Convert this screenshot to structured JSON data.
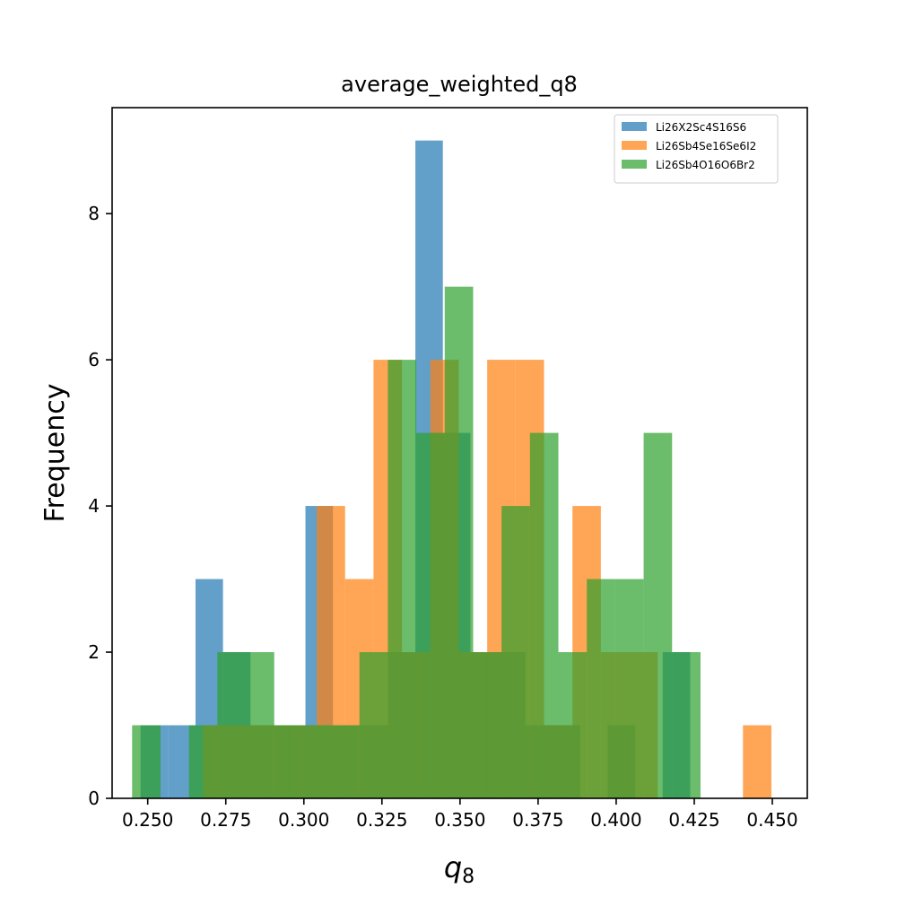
{
  "chart_data": {
    "type": "bar",
    "subtype": "overlapping-histogram",
    "title": "average_weighted_q8",
    "xlabel": "q",
    "xlabel_subscript": "8",
    "ylabel": "Frequency",
    "xlim": [
      0.2386,
      0.4612
    ],
    "ylim": [
      0,
      9.45
    ],
    "xticks": [
      0.25,
      0.275,
      0.3,
      0.325,
      0.35,
      0.375,
      0.4,
      0.425,
      0.45
    ],
    "xtick_labels": [
      "0.250",
      "0.275",
      "0.300",
      "0.325",
      "0.350",
      "0.375",
      "0.400",
      "0.425",
      "0.450"
    ],
    "yticks": [
      0,
      2,
      4,
      6,
      8
    ],
    "ytick_labels": [
      "0",
      "2",
      "4",
      "6",
      "8"
    ],
    "legend_position": "top-right",
    "grid": false,
    "series": [
      {
        "name": "Li26X2Sc4S16S6",
        "color": "#1f77b4",
        "opacity": 0.7,
        "bins": [
          {
            "x0": 0.2477,
            "x1": 0.2565,
            "count": 1
          },
          {
            "x0": 0.2565,
            "x1": 0.2653,
            "count": 1
          },
          {
            "x0": 0.2653,
            "x1": 0.2741,
            "count": 3
          },
          {
            "x0": 0.2741,
            "x1": 0.2829,
            "count": 2
          },
          {
            "x0": 0.2829,
            "x1": 0.2917,
            "count": 1
          },
          {
            "x0": 0.2917,
            "x1": 0.3005,
            "count": 1
          },
          {
            "x0": 0.3005,
            "x1": 0.3093,
            "count": 4
          },
          {
            "x0": 0.3093,
            "x1": 0.3181,
            "count": 1
          },
          {
            "x0": 0.3181,
            "x1": 0.3269,
            "count": 1
          },
          {
            "x0": 0.3269,
            "x1": 0.3357,
            "count": 2
          },
          {
            "x0": 0.3357,
            "x1": 0.3445,
            "count": 9
          },
          {
            "x0": 0.3445,
            "x1": 0.3533,
            "count": 5
          },
          {
            "x0": 0.3533,
            "x1": 0.3621,
            "count": 2
          },
          {
            "x0": 0.3621,
            "x1": 0.3709,
            "count": 2
          },
          {
            "x0": 0.3709,
            "x1": 0.3797,
            "count": 1
          },
          {
            "x0": 0.3797,
            "x1": 0.3885,
            "count": 1
          },
          {
            "x0": 0.3885,
            "x1": 0.3973,
            "count": 0
          },
          {
            "x0": 0.3973,
            "x1": 0.4061,
            "count": 1
          },
          {
            "x0": 0.4061,
            "x1": 0.4149,
            "count": 0
          },
          {
            "x0": 0.4149,
            "x1": 0.4237,
            "count": 2
          }
        ]
      },
      {
        "name": "Li26Sb4Se16Se6I2",
        "color": "#ff7f0e",
        "opacity": 0.7,
        "bins": [
          {
            "x0": 0.2677,
            "x1": 0.2768,
            "count": 1
          },
          {
            "x0": 0.2768,
            "x1": 0.2859,
            "count": 1
          },
          {
            "x0": 0.2859,
            "x1": 0.295,
            "count": 1
          },
          {
            "x0": 0.295,
            "x1": 0.3041,
            "count": 1
          },
          {
            "x0": 0.3041,
            "x1": 0.3132,
            "count": 4
          },
          {
            "x0": 0.3132,
            "x1": 0.3223,
            "count": 3
          },
          {
            "x0": 0.3223,
            "x1": 0.3314,
            "count": 6
          },
          {
            "x0": 0.3314,
            "x1": 0.3405,
            "count": 2
          },
          {
            "x0": 0.3405,
            "x1": 0.3496,
            "count": 6
          },
          {
            "x0": 0.3496,
            "x1": 0.3587,
            "count": 2
          },
          {
            "x0": 0.3587,
            "x1": 0.3678,
            "count": 6
          },
          {
            "x0": 0.3678,
            "x1": 0.3769,
            "count": 6
          },
          {
            "x0": 0.3769,
            "x1": 0.386,
            "count": 1
          },
          {
            "x0": 0.386,
            "x1": 0.3951,
            "count": 4
          },
          {
            "x0": 0.3951,
            "x1": 0.4042,
            "count": 2
          },
          {
            "x0": 0.4042,
            "x1": 0.4133,
            "count": 2
          },
          {
            "x0": 0.4133,
            "x1": 0.4224,
            "count": 0
          },
          {
            "x0": 0.4224,
            "x1": 0.4315,
            "count": 0
          },
          {
            "x0": 0.4315,
            "x1": 0.4406,
            "count": 0
          },
          {
            "x0": 0.4406,
            "x1": 0.4497,
            "count": 1
          }
        ]
      },
      {
        "name": "Li26Sb4O16O6Br2",
        "color": "#2ca02c",
        "opacity": 0.7,
        "bins": [
          {
            "x0": 0.245,
            "x1": 0.2541,
            "count": 1
          },
          {
            "x0": 0.2541,
            "x1": 0.2632,
            "count": 0
          },
          {
            "x0": 0.2632,
            "x1": 0.2723,
            "count": 1
          },
          {
            "x0": 0.2723,
            "x1": 0.2814,
            "count": 2
          },
          {
            "x0": 0.2814,
            "x1": 0.2905,
            "count": 2
          },
          {
            "x0": 0.2905,
            "x1": 0.2996,
            "count": 1
          },
          {
            "x0": 0.2996,
            "x1": 0.3087,
            "count": 1
          },
          {
            "x0": 0.3087,
            "x1": 0.3178,
            "count": 1
          },
          {
            "x0": 0.3178,
            "x1": 0.3269,
            "count": 2
          },
          {
            "x0": 0.3269,
            "x1": 0.336,
            "count": 6
          },
          {
            "x0": 0.336,
            "x1": 0.3451,
            "count": 5
          },
          {
            "x0": 0.3451,
            "x1": 0.3542,
            "count": 7
          },
          {
            "x0": 0.3542,
            "x1": 0.3633,
            "count": 2
          },
          {
            "x0": 0.3633,
            "x1": 0.3724,
            "count": 4
          },
          {
            "x0": 0.3724,
            "x1": 0.3815,
            "count": 5
          },
          {
            "x0": 0.3815,
            "x1": 0.3906,
            "count": 2
          },
          {
            "x0": 0.3906,
            "x1": 0.3997,
            "count": 3
          },
          {
            "x0": 0.3997,
            "x1": 0.4088,
            "count": 3
          },
          {
            "x0": 0.4088,
            "x1": 0.4179,
            "count": 5
          },
          {
            "x0": 0.4179,
            "x1": 0.427,
            "count": 2
          }
        ]
      }
    ]
  }
}
